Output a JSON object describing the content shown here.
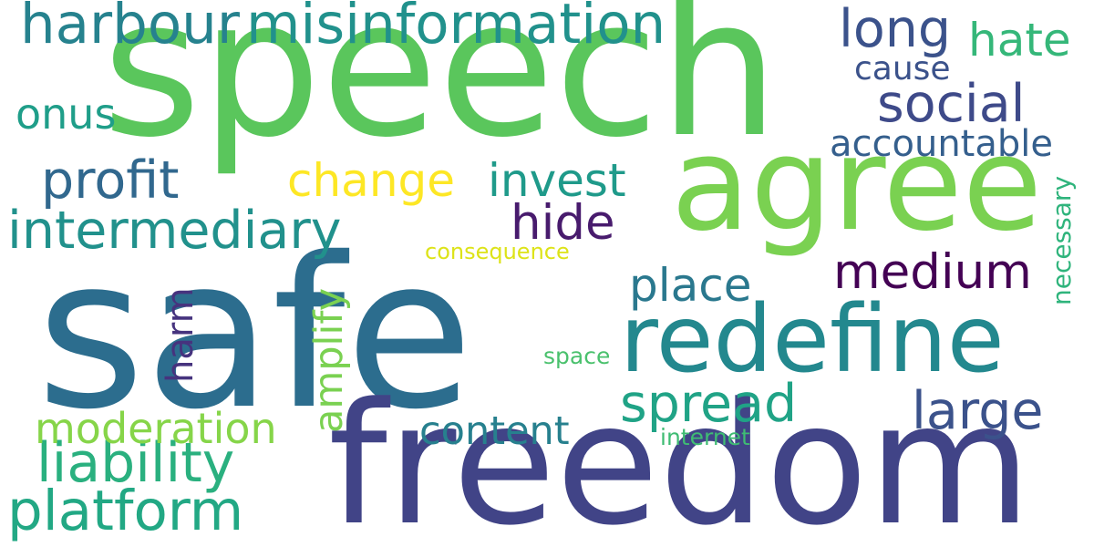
{
  "words": {
    "safe": {
      "text": "safe",
      "color": "#2c6d8e"
    },
    "speech": {
      "text": "speech",
      "color": "#5ac65c"
    },
    "freedom": {
      "text": "freedom",
      "color": "#414487"
    },
    "agree": {
      "text": "agree",
      "color": "#7ad151"
    },
    "redefine": {
      "text": "redefine",
      "color": "#23888e"
    },
    "misinformation": {
      "text": "misinformation",
      "color": "#21918c"
    },
    "harbour": {
      "text": "harbour",
      "color": "#26828e"
    },
    "platform": {
      "text": "platform",
      "color": "#22a884"
    },
    "liability": {
      "text": "liability",
      "color": "#2ab07f"
    },
    "intermediary": {
      "text": "intermediary",
      "color": "#21918c"
    },
    "moderation": {
      "text": "moderation",
      "color": "#86d549"
    },
    "profit": {
      "text": "profit",
      "color": "#31688e"
    },
    "change": {
      "text": "change",
      "color": "#fde725"
    },
    "invest": {
      "text": "invest",
      "color": "#1f9a8a"
    },
    "hide": {
      "text": "hide",
      "color": "#481b6d"
    },
    "long": {
      "text": "long",
      "color": "#3b528b"
    },
    "hate": {
      "text": "hate",
      "color": "#35b779"
    },
    "social": {
      "text": "social",
      "color": "#3e4a89"
    },
    "cause": {
      "text": "cause",
      "color": "#3b528b"
    },
    "accountable": {
      "text": "accountable",
      "color": "#355f8d"
    },
    "medium": {
      "text": "medium",
      "color": "#440154"
    },
    "place": {
      "text": "place",
      "color": "#2a788e"
    },
    "spread": {
      "text": "spread",
      "color": "#20a386"
    },
    "large": {
      "text": "large",
      "color": "#3b528b"
    },
    "content": {
      "text": "content",
      "color": "#27808e"
    },
    "onus": {
      "text": "onus",
      "color": "#1f9e89"
    },
    "consequence": {
      "text": "consequence",
      "color": "#dde318"
    },
    "amplify": {
      "text": "amplify",
      "color": "#7ad151"
    },
    "harm": {
      "text": "harm",
      "color": "#46337e"
    },
    "space": {
      "text": "space",
      "color": "#4ac16d"
    },
    "internet": {
      "text": "internet",
      "color": "#3fbc73"
    },
    "necessary": {
      "text": "necessary",
      "color": "#2fb47c"
    }
  }
}
